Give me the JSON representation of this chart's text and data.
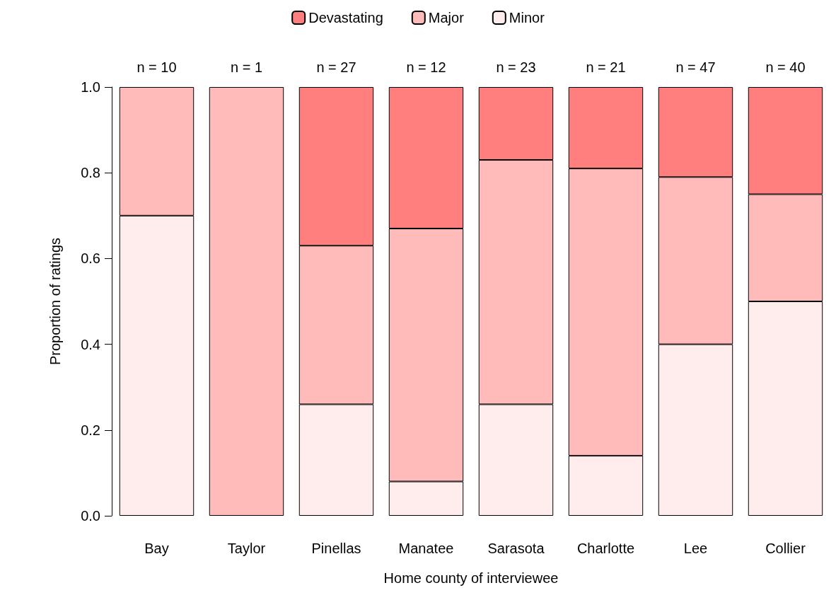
{
  "chart_data": {
    "type": "bar",
    "stacked": true,
    "xlabel": "Home county of interviewee",
    "ylabel": "Proportion of ratings",
    "categories": [
      "Bay",
      "Taylor",
      "Pinellas",
      "Manatee",
      "Sarasota",
      "Charlotte",
      "Lee",
      "Collier"
    ],
    "series": [
      {
        "name": "Minor",
        "color": "#ffeded",
        "values": [
          0.7,
          0,
          0.26,
          0.08,
          0.26,
          0.14,
          0.4,
          0.5
        ]
      },
      {
        "name": "Major",
        "color": "#ffbaba",
        "values": [
          0.3,
          1,
          0.37,
          0.59,
          0.57,
          0.67,
          0.39,
          0.25
        ]
      },
      {
        "name": "Devastating",
        "color": "#ff7f7f",
        "values": [
          0,
          0,
          0.37,
          0.33,
          0.17,
          0.19,
          0.21,
          0.25
        ]
      }
    ],
    "annotations": [
      "n = 10",
      "n = 1",
      "n = 27",
      "n = 12",
      "n = 23",
      "n = 21",
      "n = 47",
      "n = 40"
    ],
    "ylim": [
      0,
      1
    ],
    "yticks": [
      {
        "value": 0,
        "label": "0.0"
      },
      {
        "value": 0.2,
        "label": "0.2"
      },
      {
        "value": 0.4,
        "label": "0.4"
      },
      {
        "value": 0.6,
        "label": "0.6"
      },
      {
        "value": 0.8,
        "label": "0.8"
      },
      {
        "value": 1,
        "label": "1.0"
      }
    ],
    "grid": false,
    "legend": "top"
  }
}
